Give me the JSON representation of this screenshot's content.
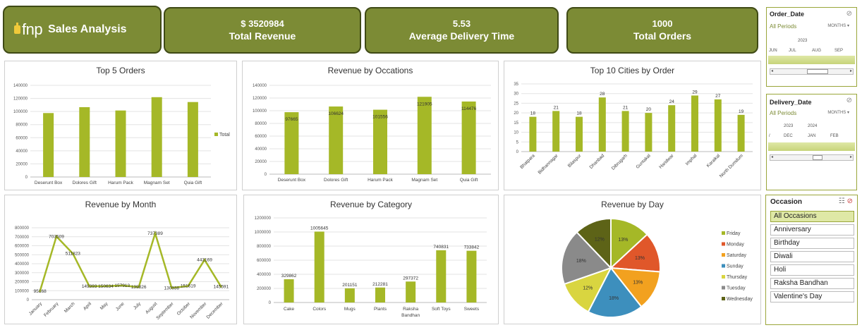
{
  "brand": {
    "logo_text": "fnp",
    "title": "Sales Analysis"
  },
  "kpis": [
    {
      "value": "$ 3520984",
      "label": "Total Revenue"
    },
    {
      "value": "5.53",
      "label": "Average Delivery Time"
    },
    {
      "value": "1000",
      "label": "Total Orders"
    }
  ],
  "colors": {
    "accent": "#7c8b35",
    "bar": "#a5b827",
    "border": "#3f4a15"
  },
  "order_date_slicer": {
    "title": "Order_Date",
    "all_periods": "All Periods",
    "level": "MONTHS",
    "year": "2023",
    "months": [
      "JUN",
      "JUL",
      "AUG",
      "SEP"
    ]
  },
  "delivery_date_slicer": {
    "title": "Delivery_Date",
    "all_periods": "All Periods",
    "level": "MONTHS",
    "years": [
      "2023",
      "2024"
    ],
    "months": [
      "/",
      "DEC",
      "JAN",
      "FEB"
    ]
  },
  "occasion_slicer": {
    "title": "Occasion",
    "items": [
      "All Occasions",
      "Anniversary",
      "Birthday",
      "Diwali",
      "Holi",
      "Raksha Bandhan",
      "Valentine's Day"
    ],
    "selected": "All Occasions"
  },
  "chart_data": [
    {
      "title": "Top 5 Orders",
      "type": "bar",
      "categories": [
        "Deserunt Box",
        "Dolores Gift",
        "Harum Pack",
        "Magnam Set",
        "Quia Gift"
      ],
      "series": [
        {
          "name": "Total",
          "values": [
            97665,
            106624,
            101556,
            121905,
            114476
          ]
        }
      ],
      "y_ticks": [
        "0",
        "20000",
        "40000",
        "60000",
        "80000",
        "100000",
        "120000",
        "140000"
      ],
      "ylim": [
        0,
        140000
      ],
      "legend": "right"
    },
    {
      "title": "Revenue by Occations",
      "type": "bar",
      "categories": [
        "Deserunt Box",
        "Dolores Gift",
        "Harum Pack",
        "Magnam Set",
        "Quia Gift"
      ],
      "values": [
        97665,
        106624,
        101556,
        121905,
        114476
      ],
      "data_labels": [
        "97665",
        "106624",
        "101556",
        "121905",
        "114476"
      ],
      "y_ticks": [
        "0",
        "20000",
        "40000",
        "60000",
        "80000",
        "100000",
        "120000",
        "140000"
      ],
      "ylim": [
        0,
        140000
      ]
    },
    {
      "title": "Top 10 Cities by Order",
      "type": "bar",
      "categories": [
        "Bhatpara",
        "Bidhannagar",
        "Bilaspur",
        "Dhanbad",
        "Dibrugarh",
        "Guntakal",
        "Haridwar",
        "Imphal",
        "Karaikal",
        "North Dumdum"
      ],
      "values": [
        18,
        21,
        18,
        28,
        21,
        20,
        24,
        29,
        27,
        19
      ],
      "data_labels": [
        "18",
        "21",
        "18",
        "28",
        "21",
        "20",
        "24",
        "29",
        "27",
        "19"
      ],
      "y_ticks": [
        "0",
        "5",
        "10",
        "15",
        "20",
        "25",
        "30",
        "35"
      ],
      "ylim": [
        0,
        35
      ]
    },
    {
      "title": "Revenue by Month",
      "type": "line",
      "categories": [
        "January",
        "February",
        "March",
        "April",
        "May",
        "June",
        "July",
        "August",
        "September",
        "October",
        "November",
        "December"
      ],
      "values": [
        95168,
        703509,
        511823,
        149393,
        150634,
        157913,
        139826,
        737389,
        130938,
        151619,
        443169,
        145591
      ],
      "data_labels": [
        "95168",
        "703509",
        "511823",
        "149393",
        "150634",
        "157913",
        "139826",
        "737389",
        "130938",
        "151619",
        "443169",
        "145591"
      ],
      "y_ticks": [
        "0",
        "100000",
        "200000",
        "300000",
        "400000",
        "500000",
        "600000",
        "700000",
        "800000"
      ],
      "ylim": [
        0,
        800000
      ]
    },
    {
      "title": "Revenue by Category",
      "type": "bar",
      "categories": [
        "Cake",
        "Colors",
        "Mugs",
        "Plants",
        "Raksha Bandhan",
        "Soft Toys",
        "Sweets"
      ],
      "category_lines": [
        [
          "Cake"
        ],
        [
          "Colors"
        ],
        [
          "Mugs"
        ],
        [
          "Plants"
        ],
        [
          "Raksha",
          "Bandhan"
        ],
        [
          "Soft Toys"
        ],
        [
          "Sweets"
        ]
      ],
      "values": [
        329862,
        1005645,
        201151,
        212281,
        297372,
        740831,
        733842
      ],
      "data_labels": [
        "329862",
        "1005645",
        "201151",
        "212281",
        "297372",
        "740831",
        "733842"
      ],
      "y_ticks": [
        "0",
        "200000",
        "400000",
        "600000",
        "800000",
        "1000000",
        "1200000"
      ],
      "ylim": [
        0,
        1200000
      ]
    },
    {
      "title": "Revenue by Day",
      "type": "pie",
      "slices": [
        {
          "label": "Friday",
          "value": 13,
          "text": "13%",
          "color": "#a5b827"
        },
        {
          "label": "Monday",
          "value": 13,
          "text": "13%",
          "color": "#e0572a"
        },
        {
          "label": "Saturday",
          "value": 13,
          "text": "13%",
          "color": "#f2a11f"
        },
        {
          "label": "Sunday",
          "value": 18,
          "text": "18%",
          "color": "#3d8fbd"
        },
        {
          "label": "Thursday",
          "value": 12,
          "text": "12%",
          "color": "#d9d540"
        },
        {
          "label": "Tuesday",
          "value": 18,
          "text": "18%",
          "color": "#8a8a8a"
        },
        {
          "label": "Wednesday",
          "value": 12,
          "text": "12%",
          "color": "#5d6317"
        }
      ],
      "legend": "right"
    }
  ]
}
